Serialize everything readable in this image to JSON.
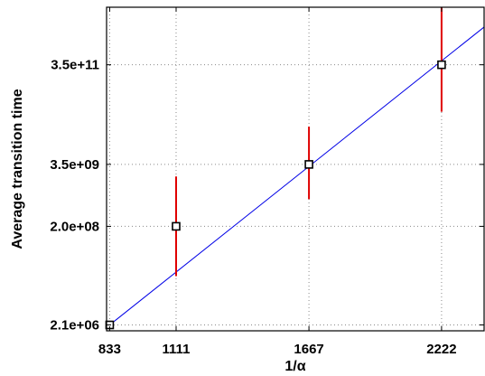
{
  "chart_data": {
    "type": "scatter",
    "title": "",
    "xlabel": "1/α",
    "ylabel": "Average transition time",
    "x_scale": "linear",
    "y_scale": "log",
    "xlim": [
      820,
      2400
    ],
    "ylim": [
      1600000,
      5000000000000
    ],
    "grid": true,
    "legend": "none",
    "x_ticks": [
      {
        "value": 833,
        "label": "833"
      },
      {
        "value": 1111,
        "label": "1111"
      },
      {
        "value": 1667,
        "label": "1667"
      },
      {
        "value": 2222,
        "label": "2222"
      }
    ],
    "y_ticks": [
      {
        "value": 2100000,
        "label": "2.1e+06"
      },
      {
        "value": 200000000,
        "label": "2.0e+08"
      },
      {
        "value": 3500000000,
        "label": "3.5e+09"
      },
      {
        "value": 350000000000,
        "label": "3.5e+11"
      }
    ],
    "series": [
      {
        "x": [
          833,
          1111,
          1667,
          2222
        ],
        "y": [
          2100000,
          200000000,
          3500000000,
          350000000000
        ],
        "err_low": [
          2100000,
          20000000,
          700000000,
          40000000000
        ],
        "err_high": [
          2100000,
          2000000000,
          20000000000,
          5000000000000
        ],
        "marker": "square",
        "marker_color": "#000000",
        "errorbar_color": "#e00000"
      }
    ],
    "fit_line": {
      "x": [
        833,
        2400
      ],
      "y": [
        2100000,
        2000000000000
      ],
      "color": "#0000e6"
    }
  }
}
